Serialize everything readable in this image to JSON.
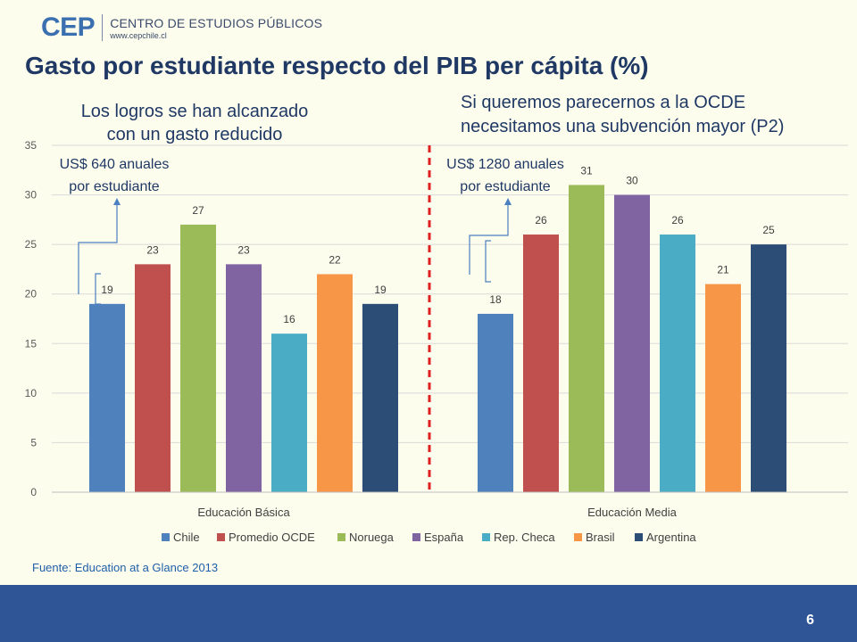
{
  "header": {
    "logo_mark": "CEP",
    "logo_org": "CENTRO DE ESTUDIOS PÚBLICOS",
    "logo_url": "www.cepchile.cl",
    "title": "Gasto por estudiante respecto del PIB per cápita (%)"
  },
  "notes": {
    "left_line1": "Los logros se han alcanzado",
    "left_line2": "con un gasto reducido",
    "right_line1": "Si queremos parecernos a la OCDE",
    "right_line2": "necesitamos una subvención mayor (P2)"
  },
  "chart_data": {
    "type": "bar",
    "categories": [
      "Educación Básica",
      "Educación Media"
    ],
    "series": [
      {
        "name": "Chile",
        "values": [
          19,
          18
        ],
        "color": "#4f81bd"
      },
      {
        "name": "Promedio OCDE",
        "values": [
          23,
          26
        ],
        "color": "#c0504d"
      },
      {
        "name": "Noruega",
        "values": [
          27,
          31
        ],
        "color": "#9bbb59"
      },
      {
        "name": "España",
        "values": [
          23,
          30
        ],
        "color": "#8064a2"
      },
      {
        "name": "Rep. Checa",
        "values": [
          16,
          26
        ],
        "color": "#4bacc6"
      },
      {
        "name": "Brasil",
        "values": [
          22,
          21
        ],
        "color": "#f79646"
      },
      {
        "name": "Argentina",
        "values": [
          19,
          25
        ],
        "color": "#2c4d75"
      }
    ],
    "ylim": [
      0,
      35
    ],
    "yticks": [
      0,
      5,
      10,
      15,
      20,
      25,
      30,
      35
    ],
    "grid": true,
    "legend": "bottom",
    "annotations": [
      {
        "group": 0,
        "line1": "US$ 640 anuales",
        "line2": "por estudiante"
      },
      {
        "group": 1,
        "line1": "US$ 1280 anuales",
        "line2": "por estudiante"
      }
    ],
    "divider_color": "#e02020",
    "annotation_color": "#4a7fc0"
  },
  "footer": {
    "source": "Fuente: Education at a Glance  2013",
    "page_number": "6",
    "color": "#2f5597"
  }
}
